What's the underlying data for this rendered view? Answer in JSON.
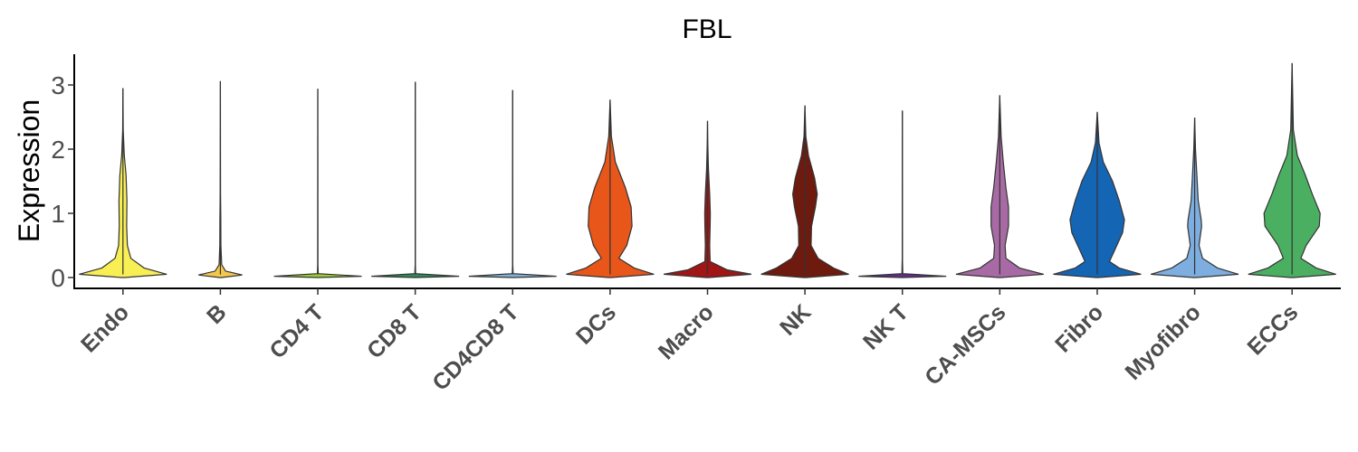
{
  "chart_data": {
    "type": "violin",
    "title": "FBL",
    "xlabel": "",
    "ylabel": "Expression",
    "ylim": [
      -0.15,
      3.5
    ],
    "yticks": [
      0,
      1,
      2,
      3
    ],
    "grid": false,
    "legend": "none",
    "categories": [
      "Endo",
      "B",
      "CD4 T",
      "CD8 T",
      "CD4CD8 T",
      "DCs",
      "Macro",
      "NK",
      "NK T",
      "CA-MSCs",
      "Fibro",
      "Myofibro",
      "ECCs"
    ],
    "colors": [
      "#F8EF54",
      "#F2C94C",
      "#9ACD32",
      "#2E8B57",
      "#7FB3D5",
      "#E8561A",
      "#A01515",
      "#6E1A0E",
      "#5E2E8A",
      "#A86AA4",
      "#1565B5",
      "#7DAEDF",
      "#4BAF62"
    ],
    "max_values": [
      2.95,
      3.06,
      2.94,
      3.05,
      2.92,
      2.77,
      2.44,
      2.68,
      2.6,
      2.84,
      2.58,
      2.49,
      3.34
    ],
    "density_profiles": [
      [
        [
          0,
          0.03
        ],
        [
          0.05,
          1
        ],
        [
          0.15,
          0.48
        ],
        [
          0.3,
          0.18
        ],
        [
          0.5,
          0.1
        ],
        [
          0.8,
          0.085
        ],
        [
          1.2,
          0.09
        ],
        [
          1.6,
          0.07
        ],
        [
          1.9,
          0.03
        ],
        [
          2.3,
          0.006
        ],
        [
          2.95,
          0
        ]
      ],
      [
        [
          0,
          0.02
        ],
        [
          0.04,
          0.5
        ],
        [
          0.1,
          0.12
        ],
        [
          0.2,
          0.03
        ],
        [
          0.5,
          0.012
        ],
        [
          0.9,
          0.01
        ],
        [
          1.3,
          0.004
        ],
        [
          2,
          0.002
        ],
        [
          3.06,
          0
        ]
      ],
      [
        [
          0,
          0.01
        ],
        [
          0.02,
          1
        ],
        [
          0.06,
          0.01
        ],
        [
          0.2,
          0.002
        ],
        [
          2.94,
          0
        ]
      ],
      [
        [
          0,
          0.01
        ],
        [
          0.02,
          1
        ],
        [
          0.06,
          0.01
        ],
        [
          0.2,
          0.002
        ],
        [
          3.05,
          0
        ]
      ],
      [
        [
          0,
          0.01
        ],
        [
          0.02,
          1
        ],
        [
          0.06,
          0.01
        ],
        [
          0.2,
          0.002
        ],
        [
          2.92,
          0
        ]
      ],
      [
        [
          0,
          0.03
        ],
        [
          0.05,
          1
        ],
        [
          0.15,
          0.55
        ],
        [
          0.3,
          0.2
        ],
        [
          0.5,
          0.38
        ],
        [
          0.8,
          0.5
        ],
        [
          1.1,
          0.48
        ],
        [
          1.4,
          0.35
        ],
        [
          1.8,
          0.12
        ],
        [
          2.2,
          0.03
        ],
        [
          2.77,
          0
        ]
      ],
      [
        [
          0,
          0.03
        ],
        [
          0.05,
          1
        ],
        [
          0.12,
          0.45
        ],
        [
          0.25,
          0.06
        ],
        [
          0.5,
          0.05
        ],
        [
          0.8,
          0.06
        ],
        [
          1,
          0.065
        ],
        [
          1.3,
          0.05
        ],
        [
          1.7,
          0.02
        ],
        [
          2.1,
          0.006
        ],
        [
          2.44,
          0
        ]
      ],
      [
        [
          0,
          0.03
        ],
        [
          0.05,
          1
        ],
        [
          0.15,
          0.65
        ],
        [
          0.3,
          0.3
        ],
        [
          0.5,
          0.14
        ],
        [
          0.8,
          0.15
        ],
        [
          1.1,
          0.24
        ],
        [
          1.3,
          0.28
        ],
        [
          1.55,
          0.22
        ],
        [
          1.9,
          0.08
        ],
        [
          2.2,
          0.02
        ],
        [
          2.68,
          0
        ]
      ],
      [
        [
          0,
          0.01
        ],
        [
          0.02,
          1
        ],
        [
          0.06,
          0.01
        ],
        [
          0.3,
          0.002
        ],
        [
          2.6,
          0
        ]
      ],
      [
        [
          0,
          0.03
        ],
        [
          0.05,
          1
        ],
        [
          0.15,
          0.45
        ],
        [
          0.3,
          0.14
        ],
        [
          0.5,
          0.12
        ],
        [
          0.8,
          0.2
        ],
        [
          1.1,
          0.2
        ],
        [
          1.4,
          0.14
        ],
        [
          1.8,
          0.08
        ],
        [
          2.2,
          0.03
        ],
        [
          2.84,
          0
        ]
      ],
      [
        [
          0,
          0.03
        ],
        [
          0.05,
          1
        ],
        [
          0.15,
          0.5
        ],
        [
          0.25,
          0.28
        ],
        [
          0.4,
          0.38
        ],
        [
          0.7,
          0.58
        ],
        [
          0.9,
          0.62
        ],
        [
          1.2,
          0.5
        ],
        [
          1.5,
          0.35
        ],
        [
          1.8,
          0.14
        ],
        [
          2.1,
          0.04
        ],
        [
          2.58,
          0
        ]
      ],
      [
        [
          0,
          0.03
        ],
        [
          0.05,
          1
        ],
        [
          0.15,
          0.52
        ],
        [
          0.3,
          0.18
        ],
        [
          0.5,
          0.1
        ],
        [
          0.8,
          0.16
        ],
        [
          0.9,
          0.15
        ],
        [
          1.2,
          0.08
        ],
        [
          1.6,
          0.05
        ],
        [
          2,
          0.02
        ],
        [
          2.49,
          0
        ]
      ],
      [
        [
          0,
          0.03
        ],
        [
          0.05,
          1
        ],
        [
          0.15,
          0.55
        ],
        [
          0.3,
          0.2
        ],
        [
          0.5,
          0.32
        ],
        [
          0.8,
          0.62
        ],
        [
          1,
          0.64
        ],
        [
          1.3,
          0.46
        ],
        [
          1.6,
          0.3
        ],
        [
          1.9,
          0.12
        ],
        [
          2.3,
          0.03
        ],
        [
          3.34,
          0
        ]
      ]
    ]
  }
}
